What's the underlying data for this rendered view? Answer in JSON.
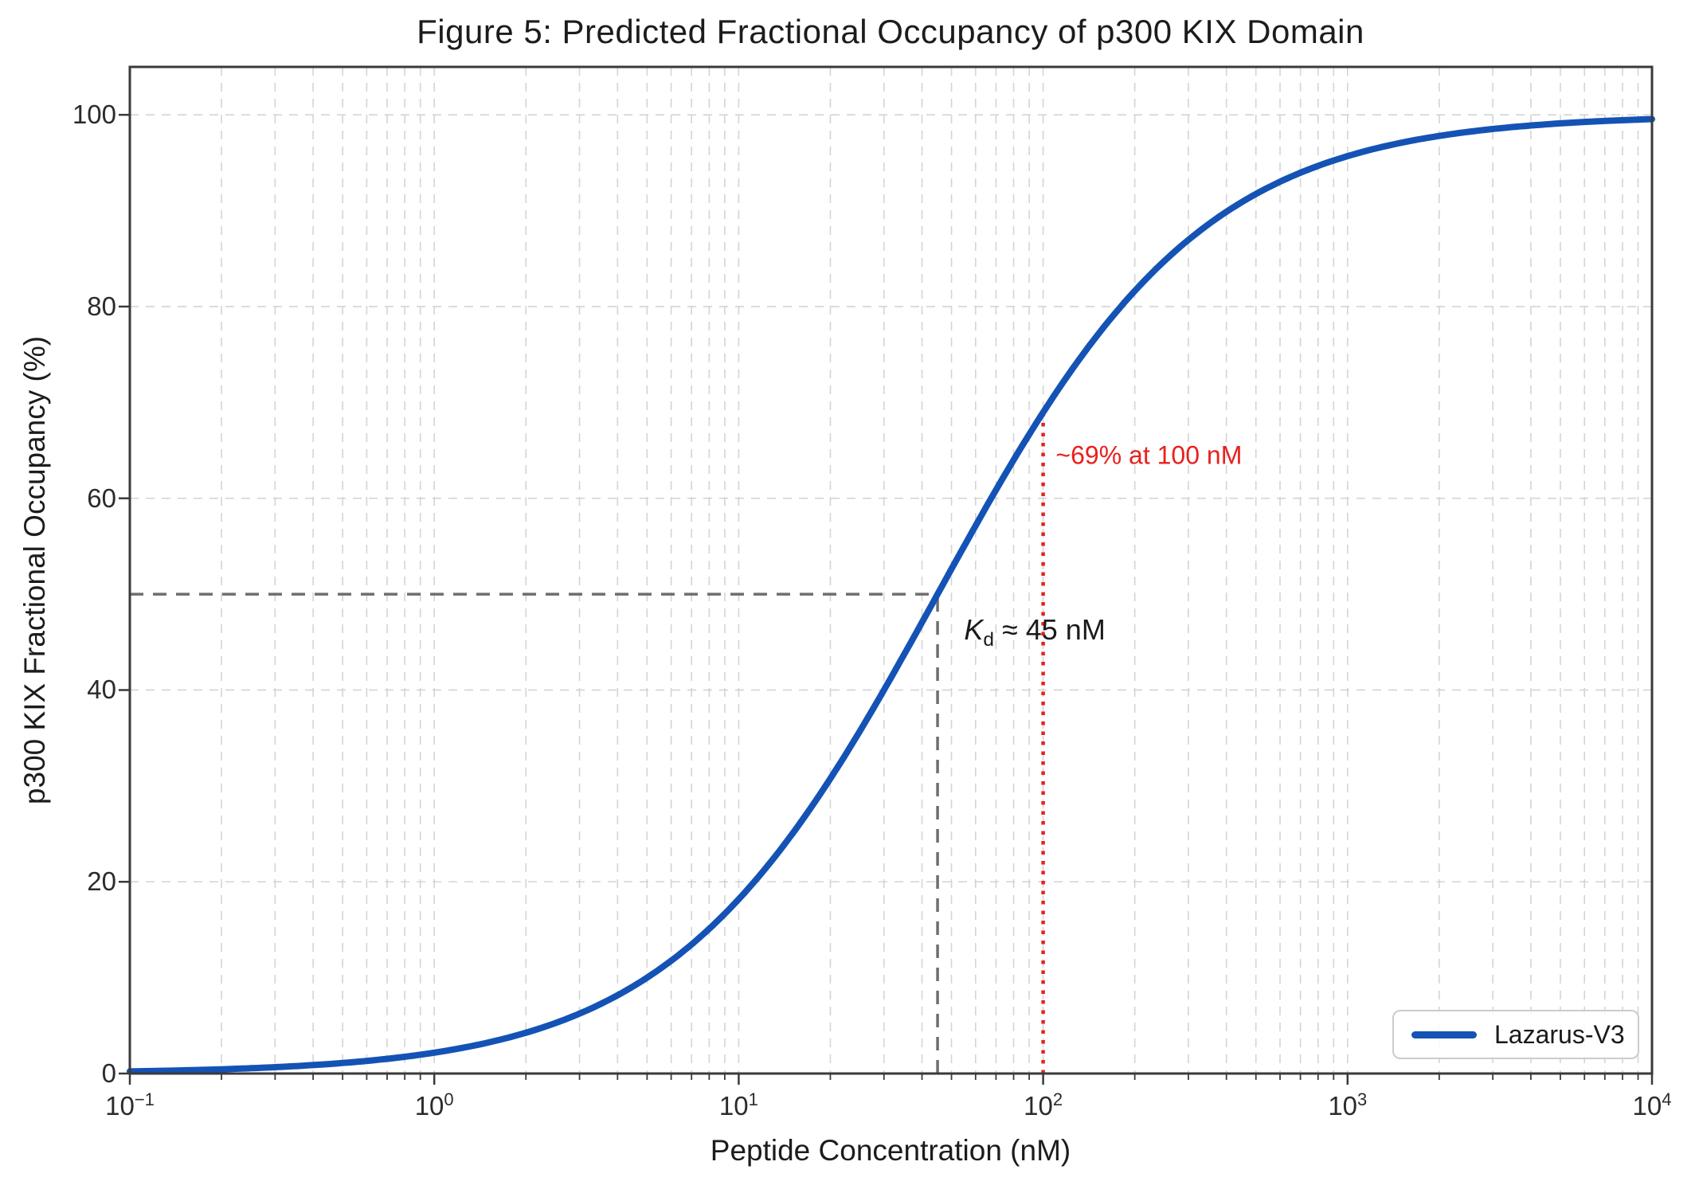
{
  "figure": {
    "title": "Figure 5: Predicted Fractional Occupancy of p300 KIX Domain"
  },
  "chart_data": {
    "type": "line",
    "title": "Figure 5: Predicted Fractional Occupancy of p300 KIX Domain",
    "xlabel": "Peptide Concentration (nM)",
    "ylabel": "p300 KIX Fractional Occupancy (%)",
    "x_scale": "log",
    "xlim": [
      0.1,
      10000
    ],
    "ylim": [
      0,
      105
    ],
    "grid": true,
    "x_ticks": [
      {
        "base": "10",
        "exp": "−1",
        "value": 0.1
      },
      {
        "base": "10",
        "exp": "0",
        "value": 1
      },
      {
        "base": "10",
        "exp": "1",
        "value": 10
      },
      {
        "base": "10",
        "exp": "2",
        "value": 100
      },
      {
        "base": "10",
        "exp": "3",
        "value": 1000
      },
      {
        "base": "10",
        "exp": "4",
        "value": 10000
      }
    ],
    "y_ticks": [
      0,
      20,
      40,
      60,
      80,
      100
    ],
    "series": [
      {
        "name": "Lazarus-V3",
        "color": "#1453b5",
        "model": "occupancy(%) = 100 * C / (C + Kd)",
        "kd_nM": 45,
        "sample_points": [
          {
            "x": 0.1,
            "y": 0.22
          },
          {
            "x": 0.3,
            "y": 0.66
          },
          {
            "x": 1,
            "y": 2.2
          },
          {
            "x": 3,
            "y": 6.3
          },
          {
            "x": 10,
            "y": 18.2
          },
          {
            "x": 30,
            "y": 40.0
          },
          {
            "x": 45,
            "y": 50.0
          },
          {
            "x": 100,
            "y": 69.0
          },
          {
            "x": 300,
            "y": 87.0
          },
          {
            "x": 1000,
            "y": 95.7
          },
          {
            "x": 3000,
            "y": 98.5
          },
          {
            "x": 10000,
            "y": 99.6
          }
        ]
      }
    ],
    "reference_lines": [
      {
        "id": "kd-hline",
        "type": "h",
        "y": 50,
        "x_from": 0.1,
        "x_to": 45,
        "style": "dashed",
        "color": "#6e6e6e"
      },
      {
        "id": "kd-vline",
        "type": "v",
        "x": 45,
        "y_from": 0,
        "y_to": 50,
        "style": "dashed",
        "color": "#6e6e6e"
      },
      {
        "id": "occ-100-line",
        "type": "v",
        "x": 100,
        "y_from": 0,
        "y_to": 69,
        "style": "dotted",
        "color": "#e8211c"
      }
    ],
    "annotations": [
      {
        "id": "kd-label",
        "kind": "rich",
        "k": "K",
        "sub": "d",
        "rest": " ≈ 45 nM",
        "x": 55,
        "y": 46,
        "color": "#1a1a1a"
      },
      {
        "id": "occ100-label",
        "kind": "plain",
        "text": "~69% at 100 nM",
        "x": 110,
        "y": 64.5,
        "color": "#e8211c"
      }
    ],
    "legend": {
      "position": "lower right",
      "entries": [
        {
          "label": "Lazarus-V3",
          "color": "#1453b5"
        }
      ]
    },
    "colors": {
      "curve": "#1453b5",
      "grid": "#d4d4d4",
      "spine": "#3a3a3a",
      "kd_lines": "#6e6e6e",
      "highlight_red": "#e8211c",
      "background": "#ffffff"
    }
  }
}
